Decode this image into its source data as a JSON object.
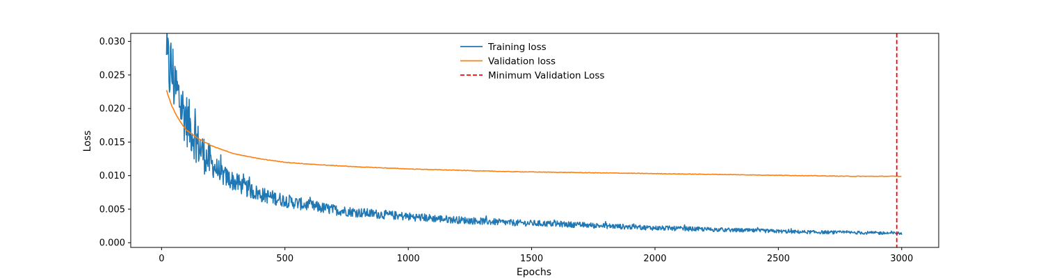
{
  "chart_data": {
    "type": "line",
    "title": "",
    "xlabel": "Epochs",
    "ylabel": "Loss",
    "xlim": [
      -125,
      3150
    ],
    "ylim": [
      -0.0007,
      0.0312
    ],
    "x_ticks": [
      0,
      500,
      1000,
      1500,
      2000,
      2500,
      3000
    ],
    "x_tick_labels": [
      "0",
      "500",
      "1000",
      "1500",
      "2000",
      "2500",
      "3000"
    ],
    "y_ticks": [
      0.0,
      0.005,
      0.01,
      0.015,
      0.02,
      0.025,
      0.03
    ],
    "y_tick_labels": [
      "0.000",
      "0.005",
      "0.010",
      "0.015",
      "0.020",
      "0.025",
      "0.030"
    ],
    "grid": false,
    "legend_position": "top-center",
    "series": [
      {
        "name": "Training loss",
        "color": "#1f77b4",
        "style": "solid",
        "x_start": 20,
        "x_end": 3000,
        "noisy": true,
        "points": [
          [
            20,
            0.0262
          ],
          [
            40,
            0.0258
          ],
          [
            60,
            0.0225
          ],
          [
            80,
            0.0205
          ],
          [
            100,
            0.0185
          ],
          [
            125,
            0.0165
          ],
          [
            150,
            0.0145
          ],
          [
            175,
            0.013
          ],
          [
            200,
            0.0118
          ],
          [
            250,
            0.01
          ],
          [
            300,
            0.009
          ],
          [
            350,
            0.008
          ],
          [
            400,
            0.0072
          ],
          [
            500,
            0.0063
          ],
          [
            600,
            0.0055
          ],
          [
            700,
            0.0049
          ],
          [
            800,
            0.0045
          ],
          [
            900,
            0.0042
          ],
          [
            1000,
            0.0039
          ],
          [
            1200,
            0.0034
          ],
          [
            1400,
            0.003
          ],
          [
            1600,
            0.0028
          ],
          [
            1800,
            0.0025
          ],
          [
            2000,
            0.0022
          ],
          [
            2200,
            0.002
          ],
          [
            2400,
            0.0018
          ],
          [
            2600,
            0.0016
          ],
          [
            2800,
            0.0015
          ],
          [
            3000,
            0.0014
          ]
        ]
      },
      {
        "name": "Validation loss",
        "color": "#ff7f0e",
        "style": "solid",
        "x_start": 20,
        "x_end": 3000,
        "noisy": false,
        "points": [
          [
            20,
            0.0227
          ],
          [
            40,
            0.0205
          ],
          [
            60,
            0.019
          ],
          [
            80,
            0.0178
          ],
          [
            100,
            0.0168
          ],
          [
            150,
            0.0155
          ],
          [
            200,
            0.0145
          ],
          [
            250,
            0.0138
          ],
          [
            300,
            0.0132
          ],
          [
            400,
            0.0125
          ],
          [
            500,
            0.012
          ],
          [
            600,
            0.0117
          ],
          [
            700,
            0.0115
          ],
          [
            800,
            0.0113
          ],
          [
            1000,
            0.011
          ],
          [
            1200,
            0.0108
          ],
          [
            1400,
            0.0106
          ],
          [
            1600,
            0.0105
          ],
          [
            1800,
            0.0104
          ],
          [
            2000,
            0.0103
          ],
          [
            2200,
            0.0102
          ],
          [
            2400,
            0.0101
          ],
          [
            2600,
            0.01
          ],
          [
            2800,
            0.0099
          ],
          [
            3000,
            0.0099
          ]
        ]
      }
    ],
    "vline": {
      "name": "Minimum Validation Loss",
      "x": 2980,
      "color": "#ff0000",
      "style": "dashed"
    }
  }
}
